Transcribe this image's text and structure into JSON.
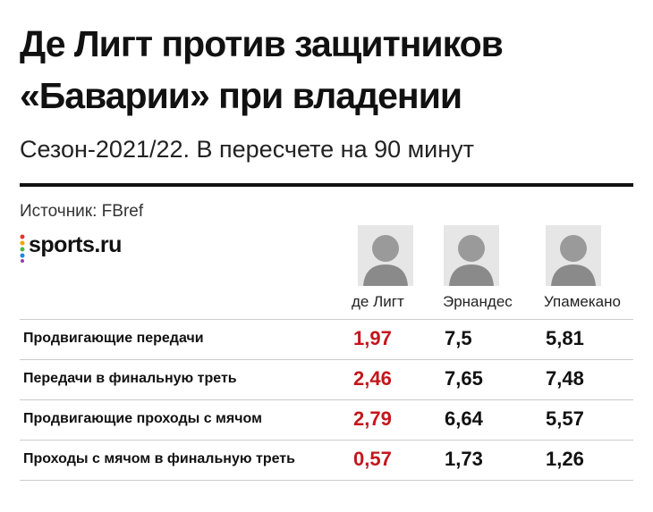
{
  "header": {
    "title": [
      "Де Лигт против защитников",
      "«Баварии» при владении"
    ],
    "subtitle": "Сезон-2021/22. В пересчете на 90 минут",
    "source": "Источник: FBref",
    "logo": "sports.ru"
  },
  "table": {
    "columns": [
      "де Лигт",
      "Эрнандес",
      "Упамекано"
    ],
    "rows": [
      [
        "Продвигающие передачи",
        "1,97",
        "7,5",
        "5,81"
      ],
      [
        "Передачи в финальную треть",
        "2,46",
        "7,65",
        "7,48"
      ],
      [
        "Продвигающие проходы с мячом",
        "2,79",
        "6,64",
        "5,57"
      ],
      [
        "Проходы с мячом в финальную треть",
        "0,57",
        "1,73",
        "1,26"
      ]
    ]
  }
}
